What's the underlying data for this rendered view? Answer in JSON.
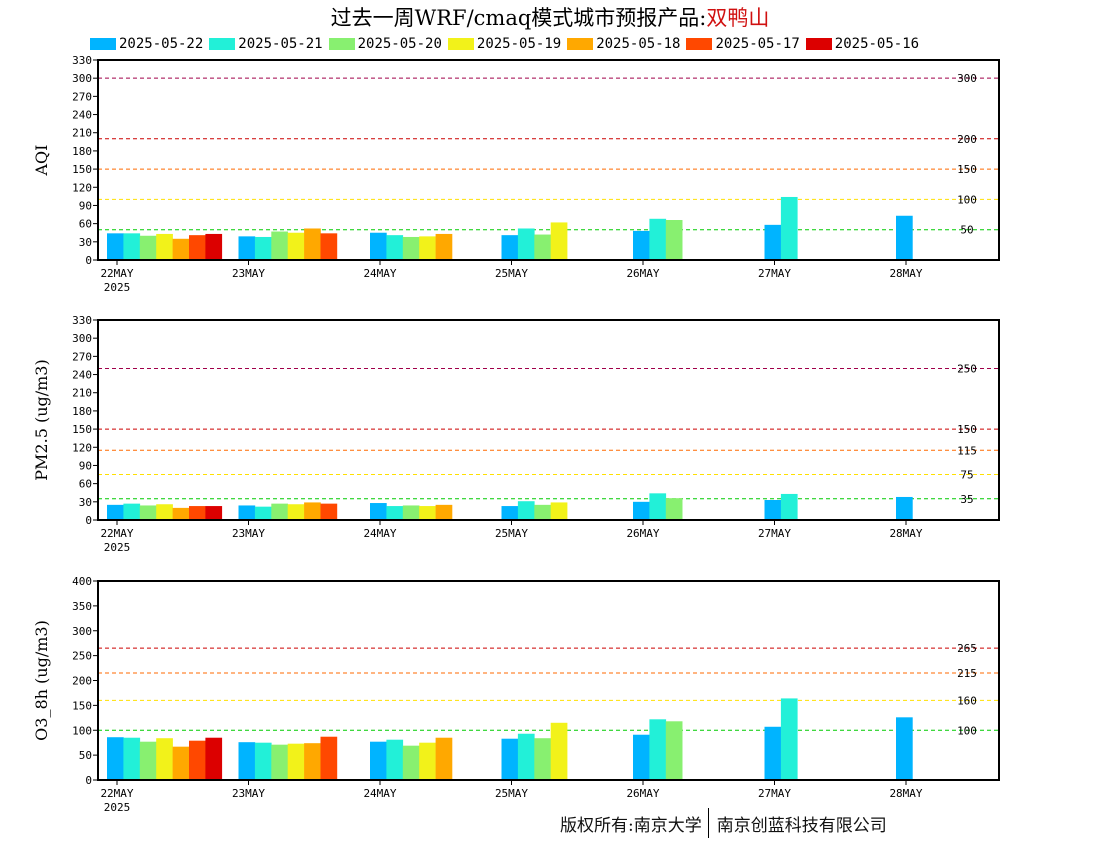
{
  "title": {
    "prefix": "过去一周WRF/cmaq模式城市预报产品:",
    "city": "双鸭山"
  },
  "footer": {
    "left": "版权所有:南京大学",
    "right": "南京创蓝科技有限公司"
  },
  "chart_data": {
    "type": "bar",
    "series": [
      {
        "name": "2025-05-22",
        "color": "#00b4ff"
      },
      {
        "name": "2025-05-21",
        "color": "#22f0d8"
      },
      {
        "name": "2025-05-20",
        "color": "#88f070"
      },
      {
        "name": "2025-05-19",
        "color": "#f2f21a"
      },
      {
        "name": "2025-05-18",
        "color": "#ffa800"
      },
      {
        "name": "2025-05-17",
        "color": "#ff4800"
      },
      {
        "name": "2025-05-16",
        "color": "#dc0000"
      }
    ],
    "x_tick_labels": [
      "22MAY",
      "23MAY",
      "24MAY",
      "25MAY",
      "26MAY",
      "27MAY",
      "28MAY"
    ],
    "x_year_label": "2025",
    "panels": [
      {
        "ylabel": "AQI",
        "ylim": [
          0,
          330
        ],
        "yticks": [
          0,
          30,
          60,
          90,
          120,
          150,
          180,
          210,
          240,
          270,
          300,
          330
        ],
        "thresholds": [
          {
            "value": 300,
            "label": "300",
            "color": "#a0004a"
          },
          {
            "value": 200,
            "label": "200",
            "color": "#cc0000"
          },
          {
            "value": 150,
            "label": "150",
            "color": "#ff6a00"
          },
          {
            "value": 100,
            "label": "100",
            "color": "#ffe000"
          },
          {
            "value": 50,
            "label": "50",
            "color": "#00cc00"
          }
        ],
        "days": [
          [
            44,
            44,
            40,
            43,
            35,
            41,
            43
          ],
          [
            39,
            38,
            47,
            45,
            52,
            44,
            null
          ],
          [
            45,
            41,
            38,
            39,
            43,
            null,
            null
          ],
          [
            41,
            52,
            42,
            62,
            null,
            null,
            null
          ],
          [
            48,
            68,
            66,
            null,
            null,
            null,
            null
          ],
          [
            58,
            104,
            null,
            null,
            null,
            null,
            null
          ],
          [
            73,
            null,
            null,
            null,
            null,
            null,
            null
          ]
        ]
      },
      {
        "ylabel": "PM2.5 (ug/m3)",
        "ylim": [
          0,
          330
        ],
        "yticks": [
          0,
          30,
          60,
          90,
          120,
          150,
          180,
          210,
          240,
          270,
          300,
          330
        ],
        "thresholds": [
          {
            "value": 250,
            "label": "250",
            "color": "#a0004a"
          },
          {
            "value": 150,
            "label": "150",
            "color": "#cc0000"
          },
          {
            "value": 115,
            "label": "115",
            "color": "#ff6a00"
          },
          {
            "value": 75,
            "label": "75",
            "color": "#ffe000"
          },
          {
            "value": 35,
            "label": "35",
            "color": "#00cc00"
          }
        ],
        "days": [
          [
            25,
            27,
            24,
            26,
            20,
            23,
            23
          ],
          [
            24,
            22,
            27,
            26,
            29,
            27,
            null
          ],
          [
            28,
            23,
            24,
            23,
            25,
            null,
            null
          ],
          [
            23,
            31,
            25,
            29,
            null,
            null,
            null
          ],
          [
            30,
            44,
            36,
            null,
            null,
            null,
            null
          ],
          [
            33,
            43,
            null,
            null,
            null,
            null,
            null
          ],
          [
            38,
            null,
            null,
            null,
            null,
            null,
            null
          ]
        ]
      },
      {
        "ylabel": "O3_8h (ug/m3)",
        "ylim": [
          0,
          400
        ],
        "yticks": [
          0,
          50,
          100,
          150,
          200,
          250,
          300,
          350,
          400
        ],
        "thresholds": [
          {
            "value": 265,
            "label": "265",
            "color": "#cc0000"
          },
          {
            "value": 215,
            "label": "215",
            "color": "#ff6a00"
          },
          {
            "value": 160,
            "label": "160",
            "color": "#ffe000"
          },
          {
            "value": 100,
            "label": "100",
            "color": "#00cc00"
          }
        ],
        "days": [
          [
            86,
            85,
            77,
            84,
            67,
            79,
            85
          ],
          [
            76,
            75,
            71,
            73,
            74,
            87,
            null
          ],
          [
            77,
            81,
            69,
            75,
            85,
            null,
            null
          ],
          [
            83,
            93,
            84,
            115,
            null,
            null,
            null
          ],
          [
            91,
            122,
            118,
            null,
            null,
            null,
            null
          ],
          [
            107,
            164,
            null,
            null,
            null,
            null,
            null
          ],
          [
            126,
            null,
            null,
            null,
            null,
            null,
            null
          ]
        ]
      }
    ]
  }
}
